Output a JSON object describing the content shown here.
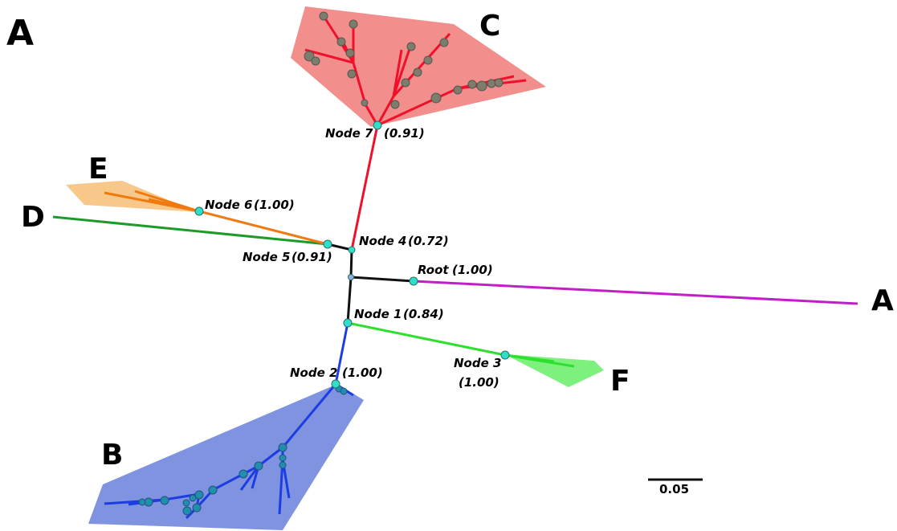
{
  "panel_label": "A",
  "scale_bar": {
    "label": "0.05"
  },
  "clades": {
    "A": "A",
    "B": "B",
    "C": "C",
    "D": "D",
    "E": "E",
    "F": "F"
  },
  "nodes": {
    "node7": {
      "name": "Node 7",
      "support": "(0.91)"
    },
    "node6": {
      "name": "Node 6",
      "support": "(1.00)"
    },
    "node5": {
      "name": "Node 5",
      "support": "(0.91)"
    },
    "node4": {
      "name": "Node 4",
      "support": "(0.72)"
    },
    "root": {
      "name": "Root",
      "support": "(1.00)"
    },
    "node1": {
      "name": "Node 1",
      "support": "(0.84)"
    },
    "node2": {
      "name": "Node 2",
      "support": "(1.00)"
    },
    "node3": {
      "name": "Node 3",
      "support": "(1.00)"
    }
  },
  "colors": {
    "clade_A": "#c21ec8",
    "clade_B": "#1c3ee0",
    "clade_B_fill": "#7f93e0",
    "clade_C": "#f0102a",
    "clade_C_fill": "#f07a78",
    "clade_D": "#1e9a2a",
    "clade_E": "#f07a10",
    "clade_E_fill": "#f8c88a",
    "clade_F": "#2ee02e",
    "clade_F_fill": "#7ef07e",
    "backbone": "#111111",
    "node": "#2ee0c8"
  }
}
